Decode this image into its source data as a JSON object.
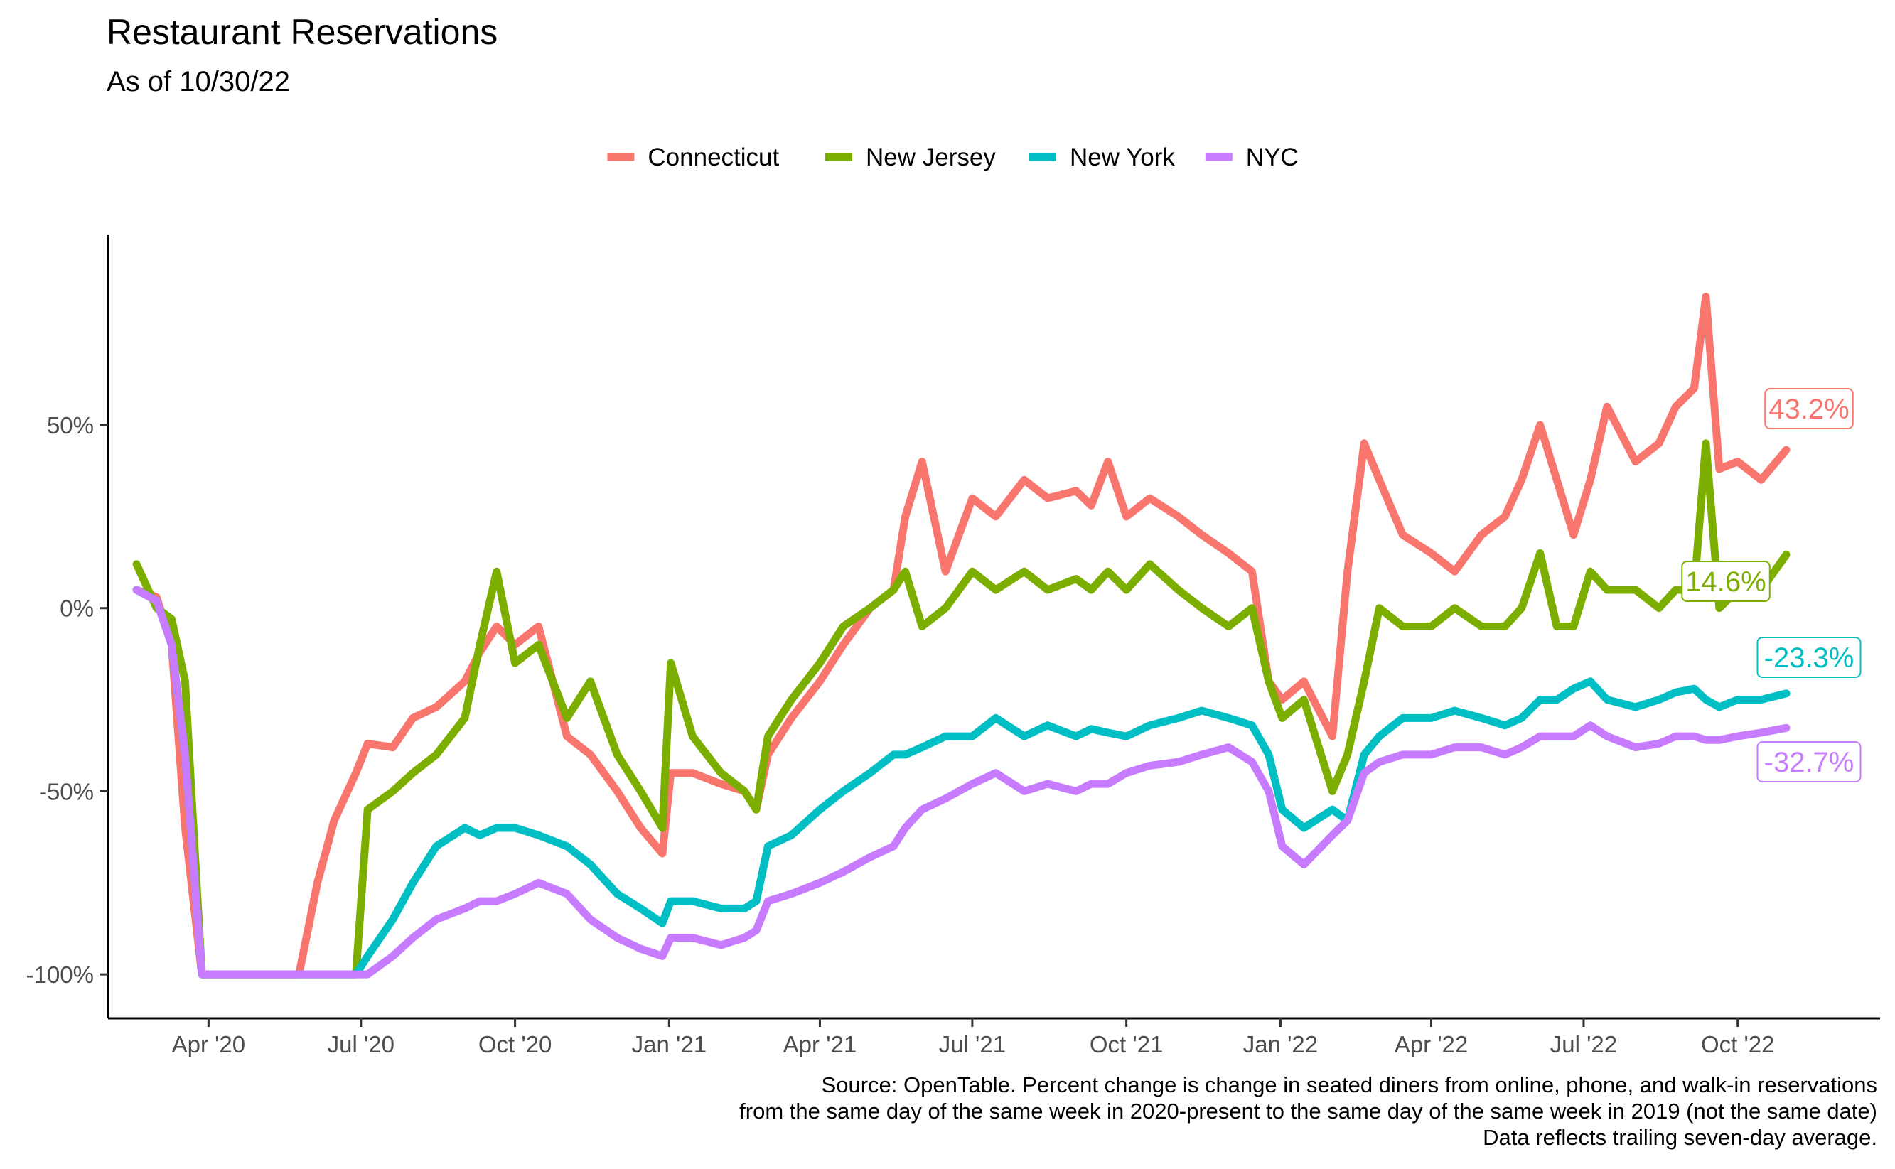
{
  "chart_data": {
    "type": "line",
    "title": "Restaurant Reservations",
    "subtitle": "As of 10/30/22",
    "xlabel": "",
    "ylabel": "",
    "x_ticks": [
      {
        "date": "2020-04-01",
        "label": "Apr '20"
      },
      {
        "date": "2020-07-01",
        "label": "Jul '20"
      },
      {
        "date": "2020-10-01",
        "label": "Oct '20"
      },
      {
        "date": "2021-01-01",
        "label": "Jan '21"
      },
      {
        "date": "2021-04-01",
        "label": "Apr '21"
      },
      {
        "date": "2021-07-01",
        "label": "Jul '21"
      },
      {
        "date": "2021-10-01",
        "label": "Oct '21"
      },
      {
        "date": "2022-01-01",
        "label": "Jan '22"
      },
      {
        "date": "2022-04-01",
        "label": "Apr '22"
      },
      {
        "date": "2022-07-01",
        "label": "Jul '22"
      },
      {
        "date": "2022-10-01",
        "label": "Oct '22"
      }
    ],
    "y_ticks": [
      {
        "value": -100,
        "label": "-100%"
      },
      {
        "value": -50,
        "label": "-50%"
      },
      {
        "value": 0,
        "label": "0%"
      },
      {
        "value": 50,
        "label": "50%"
      }
    ],
    "xlim": [
      "2020-02-01",
      "2022-12-25"
    ],
    "ylim": [
      -112,
      102
    ],
    "legend_position": "top",
    "grid": false,
    "x": [
      "2020-02-18",
      "2020-03-01",
      "2020-03-10",
      "2020-03-18",
      "2020-03-28",
      "2020-04-15",
      "2020-05-15",
      "2020-05-25",
      "2020-06-05",
      "2020-06-15",
      "2020-06-28",
      "2020-07-05",
      "2020-07-20",
      "2020-08-01",
      "2020-08-15",
      "2020-09-01",
      "2020-09-10",
      "2020-09-20",
      "2020-10-01",
      "2020-10-15",
      "2020-11-01",
      "2020-11-15",
      "2020-12-01",
      "2020-12-15",
      "2020-12-28",
      "2021-01-02",
      "2021-01-15",
      "2021-02-01",
      "2021-02-15",
      "2021-02-22",
      "2021-03-01",
      "2021-03-15",
      "2021-04-01",
      "2021-04-15",
      "2021-05-01",
      "2021-05-15",
      "2021-05-22",
      "2021-06-01",
      "2021-06-15",
      "2021-07-01",
      "2021-07-15",
      "2021-08-01",
      "2021-08-15",
      "2021-09-01",
      "2021-09-10",
      "2021-09-20",
      "2021-10-01",
      "2021-10-15",
      "2021-11-01",
      "2021-11-15",
      "2021-12-01",
      "2021-12-15",
      "2021-12-25",
      "2022-01-02",
      "2022-01-15",
      "2022-02-01",
      "2022-02-10",
      "2022-02-20",
      "2022-03-01",
      "2022-03-15",
      "2022-04-01",
      "2022-04-15",
      "2022-05-01",
      "2022-05-15",
      "2022-05-25",
      "2022-06-05",
      "2022-06-15",
      "2022-06-25",
      "2022-07-05",
      "2022-07-15",
      "2022-08-01",
      "2022-08-15",
      "2022-08-25",
      "2022-09-05",
      "2022-09-12",
      "2022-09-20",
      "2022-10-01",
      "2022-10-15",
      "2022-10-30"
    ],
    "series": [
      {
        "name": "Connecticut",
        "color": "#F8766D",
        "end_label": "43.2%",
        "values": [
          5,
          3,
          -10,
          -60,
          -100,
          -100,
          -100,
          -100,
          -75,
          -58,
          -45,
          -37,
          -38,
          -30,
          -27,
          -20,
          -12,
          -5,
          -10,
          -5,
          -35,
          -40,
          -50,
          -60,
          -67,
          -45,
          -45,
          -48,
          -50,
          -55,
          -40,
          -30,
          -20,
          -10,
          0,
          5,
          25,
          40,
          10,
          30,
          25,
          35,
          30,
          32,
          28,
          40,
          25,
          30,
          25,
          20,
          15,
          10,
          -20,
          -25,
          -20,
          -35,
          10,
          45,
          35,
          20,
          15,
          10,
          20,
          25,
          35,
          50,
          35,
          20,
          35,
          55,
          40,
          45,
          55,
          60,
          85,
          38,
          40,
          35,
          43.2
        ]
      },
      {
        "name": "New Jersey",
        "color": "#7CAE00",
        "end_label": "14.6%",
        "values": [
          12,
          0,
          -3,
          -20,
          -100,
          -100,
          -100,
          -100,
          -100,
          -100,
          -100,
          -55,
          -50,
          -45,
          -40,
          -30,
          -10,
          10,
          -15,
          -10,
          -30,
          -20,
          -40,
          -50,
          -60,
          -15,
          -35,
          -45,
          -50,
          -55,
          -35,
          -25,
          -15,
          -5,
          0,
          5,
          10,
          -5,
          0,
          10,
          5,
          10,
          5,
          8,
          5,
          10,
          5,
          12,
          5,
          0,
          -5,
          0,
          -20,
          -30,
          -25,
          -50,
          -40,
          -20,
          0,
          -5,
          -5,
          0,
          -5,
          -5,
          0,
          15,
          -5,
          -5,
          10,
          5,
          5,
          0,
          5,
          5,
          45,
          0,
          5,
          5,
          14.6
        ]
      },
      {
        "name": "New York",
        "color": "#00BFC4",
        "end_label": "-23.3%",
        "values": [
          5,
          2,
          -10,
          -40,
          -100,
          -100,
          -100,
          -100,
          -100,
          -100,
          -100,
          -95,
          -85,
          -75,
          -65,
          -60,
          -62,
          -60,
          -60,
          -62,
          -65,
          -70,
          -78,
          -82,
          -86,
          -80,
          -80,
          -82,
          -82,
          -80,
          -65,
          -62,
          -55,
          -50,
          -45,
          -40,
          -40,
          -38,
          -35,
          -35,
          -30,
          -35,
          -32,
          -35,
          -33,
          -34,
          -35,
          -32,
          -30,
          -28,
          -30,
          -32,
          -40,
          -55,
          -60,
          -55,
          -58,
          -40,
          -35,
          -30,
          -30,
          -28,
          -30,
          -32,
          -30,
          -25,
          -25,
          -22,
          -20,
          -25,
          -27,
          -25,
          -23,
          -22,
          -25,
          -27,
          -25,
          -25,
          -23.3
        ]
      },
      {
        "name": "NYC",
        "color": "#C77CFF",
        "end_label": "-32.7%",
        "values": [
          5,
          2,
          -10,
          -40,
          -100,
          -100,
          -100,
          -100,
          -100,
          -100,
          -100,
          -100,
          -95,
          -90,
          -85,
          -82,
          -80,
          -80,
          -78,
          -75,
          -78,
          -85,
          -90,
          -93,
          -95,
          -90,
          -90,
          -92,
          -90,
          -88,
          -80,
          -78,
          -75,
          -72,
          -68,
          -65,
          -60,
          -55,
          -52,
          -48,
          -45,
          -50,
          -48,
          -50,
          -48,
          -48,
          -45,
          -43,
          -42,
          -40,
          -38,
          -42,
          -50,
          -65,
          -70,
          -62,
          -58,
          -45,
          -42,
          -40,
          -40,
          -38,
          -38,
          -40,
          -38,
          -35,
          -35,
          -35,
          -32,
          -35,
          -38,
          -37,
          -35,
          -35,
          -36,
          -36,
          -35,
          -34,
          -32.7
        ]
      }
    ],
    "caption": [
      "Source: OpenTable. Percent change is change in seated diners from online, phone, and walk-in reservations",
      "from the same day of the same week in 2020-present to the same day of the same week in 2019 (not the same date)",
      "Data reflects trailing seven-day average."
    ]
  }
}
